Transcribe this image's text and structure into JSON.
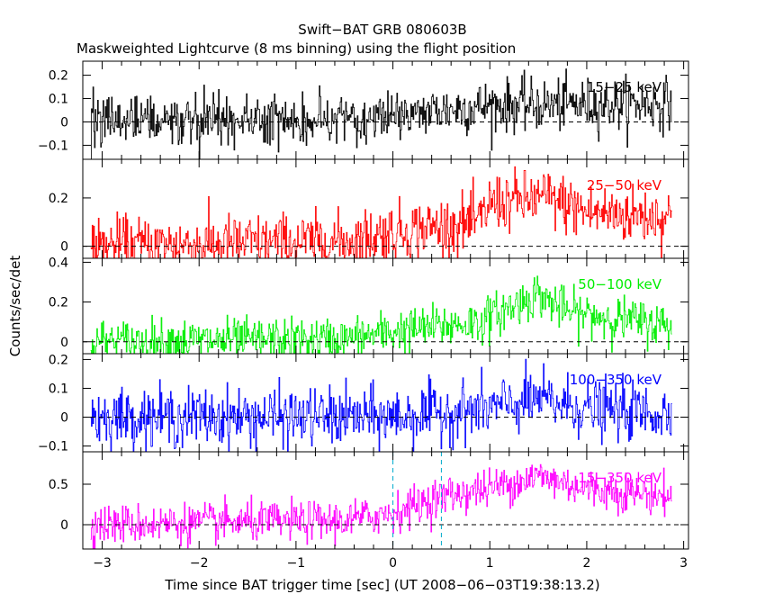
{
  "title": "Swift−BAT GRB 080603B",
  "subtitle": "Maskweighted Lightcurve (8 ms binning) using the flight position",
  "ylabel": "Counts/sec/det",
  "xlabel": "Time since BAT trigger time [sec] (UT 2008−06−03T19:38:13.2)",
  "colors": {
    "black": "#000000",
    "red": "#ff0000",
    "green": "#00ee00",
    "blue": "#0000ff",
    "magenta": "#ff00ff",
    "marker": "#00aacc"
  },
  "chart_data": {
    "type": "line",
    "x_range": [
      -3.2,
      3.05
    ],
    "x_ticks": [
      -3,
      -2,
      -1,
      0,
      1,
      2,
      3
    ],
    "x_tick_labels": [
      "−3",
      "−2",
      "−1",
      "0",
      "1",
      "2",
      "3"
    ],
    "bin_size_s": 0.008,
    "series_x_start": -3.12,
    "series_x_end": 2.88,
    "vertical_markers": [
      0.0,
      0.5
    ],
    "panels": [
      {
        "name": "15−25 keV",
        "color": "black",
        "ylim": [
          -0.16,
          0.26
        ],
        "y_ticks": [
          -0.1,
          0,
          0.1,
          0.2
        ],
        "y_tick_labels": [
          "−0.1",
          "0",
          "0.1",
          "0.2"
        ],
        "profile": [
          [
            -3.12,
            0.0
          ],
          [
            -0.5,
            0.01
          ],
          [
            0.0,
            0.03
          ],
          [
            1.0,
            0.07
          ],
          [
            2.88,
            0.08
          ]
        ],
        "noise": 0.055
      },
      {
        "name": "25−50 keV",
        "color": "red",
        "ylim": [
          -0.05,
          0.36
        ],
        "y_ticks": [
          0,
          0.2
        ],
        "y_tick_labels": [
          "0",
          "0.2"
        ],
        "profile": [
          [
            -3.12,
            0.0
          ],
          [
            -0.5,
            0.02
          ],
          [
            0.0,
            0.06
          ],
          [
            0.9,
            0.1
          ],
          [
            1.0,
            0.18
          ],
          [
            1.6,
            0.2
          ],
          [
            2.0,
            0.14
          ],
          [
            2.88,
            0.12
          ]
        ],
        "noise": 0.06
      },
      {
        "name": "50−100 keV",
        "color": "green",
        "ylim": [
          -0.06,
          0.42
        ],
        "y_ticks": [
          0,
          0.2,
          0.4
        ],
        "y_tick_labels": [
          "0",
          "0.2",
          "0.4"
        ],
        "profile": [
          [
            -3.12,
            0.0
          ],
          [
            -0.5,
            0.01
          ],
          [
            0.0,
            0.05
          ],
          [
            0.9,
            0.1
          ],
          [
            1.5,
            0.24
          ],
          [
            1.8,
            0.15
          ],
          [
            2.88,
            0.08
          ]
        ],
        "noise": 0.055
      },
      {
        "name": "100−350 keV",
        "color": "blue",
        "ylim": [
          -0.12,
          0.22
        ],
        "y_ticks": [
          -0.1,
          0,
          0.1,
          0.2
        ],
        "y_tick_labels": [
          "−0.1",
          "0",
          "0.1",
          "0.2"
        ],
        "profile": [
          [
            -3.12,
            0.0
          ],
          [
            0.0,
            0.0
          ],
          [
            1.0,
            0.03
          ],
          [
            1.5,
            0.06
          ],
          [
            2.0,
            0.03
          ],
          [
            2.88,
            0.01
          ]
        ],
        "noise": 0.05
      },
      {
        "name": "15−350 keV",
        "color": "magenta",
        "ylim": [
          -0.3,
          0.9
        ],
        "y_ticks": [
          0,
          0.5
        ],
        "y_tick_labels": [
          "0",
          "0.5"
        ],
        "profile": [
          [
            -3.12,
            0.0
          ],
          [
            -0.5,
            0.05
          ],
          [
            0.0,
            0.15
          ],
          [
            0.5,
            0.35
          ],
          [
            1.0,
            0.45
          ],
          [
            1.5,
            0.6
          ],
          [
            2.0,
            0.45
          ],
          [
            2.88,
            0.35
          ]
        ],
        "noise": 0.12
      }
    ]
  }
}
